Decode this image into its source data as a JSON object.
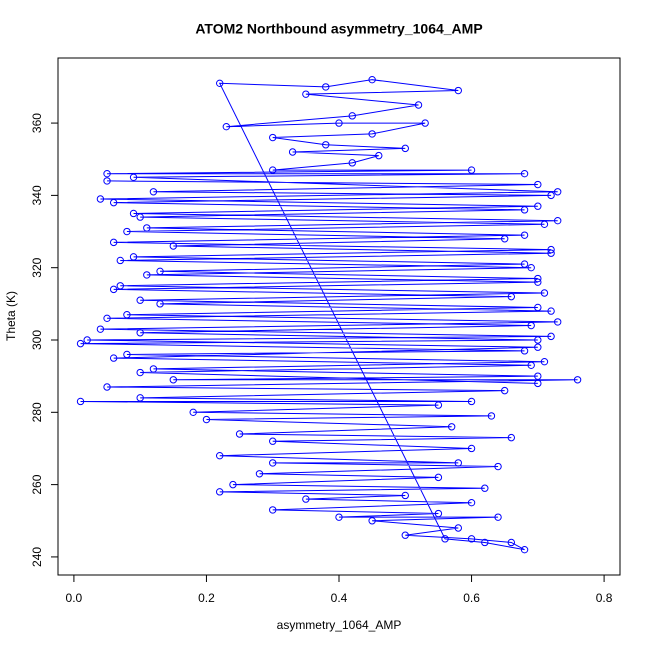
{
  "chart_data": {
    "type": "line",
    "marker": "circle",
    "title": "ATOM2 Northbound asymmetry_1064_AMP",
    "x_label": "asymmetry_1064_AMP",
    "y_label": "Theta (K)",
    "color": "#0000ff",
    "x": [
      0.05,
      0.7,
      0.12,
      0.72,
      0.06,
      0.68,
      0.1,
      0.71,
      0.08,
      0.65,
      0.15,
      0.72,
      0.07,
      0.69,
      0.11,
      0.7,
      0.06,
      0.66,
      0.13,
      0.72,
      0.05,
      0.69,
      0.1,
      0.7,
      0.01,
      0.68,
      0.08,
      0.71,
      0.12,
      0.7,
      0.15,
      0.76,
      0.05,
      0.65,
      0.1,
      0.6,
      0.01,
      0.55,
      0.18,
      0.63,
      0.2,
      0.57,
      0.25,
      0.66,
      0.3,
      0.6,
      0.22,
      0.58,
      0.3,
      0.64,
      0.28,
      0.55,
      0.24,
      0.62,
      0.22,
      0.5,
      0.35,
      0.6,
      0.3,
      0.55,
      0.4,
      0.64,
      0.45,
      0.58,
      0.5,
      0.6,
      0.66,
      0.68,
      0.62,
      0.56,
      0.22,
      0.38,
      0.45,
      0.58,
      0.35,
      0.52,
      0.42,
      0.23,
      0.4,
      0.53,
      0.45,
      0.3,
      0.38,
      0.5,
      0.33,
      0.46,
      0.42,
      0.3,
      0.6,
      0.05,
      0.68,
      0.09,
      0.73,
      0.04,
      0.7,
      0.09,
      0.73,
      0.11,
      0.68,
      0.06,
      0.72,
      0.09,
      0.68,
      0.13,
      0.7,
      0.07,
      0.71,
      0.1,
      0.7,
      0.08,
      0.73,
      0.04,
      0.72,
      0.02,
      0.7,
      0.06,
      0.69,
      0.1,
      0.7
    ],
    "y": [
      344,
      343,
      341,
      340,
      338,
      336,
      334,
      332,
      330,
      328,
      326,
      324,
      322,
      320,
      318,
      316,
      314,
      312,
      310,
      308,
      306,
      304,
      302,
      300,
      299,
      297,
      296,
      294,
      292,
      290,
      289,
      289,
      287,
      286,
      284,
      283,
      283,
      282,
      280,
      279,
      278,
      276,
      274,
      273,
      272,
      270,
      268,
      266,
      266,
      265,
      263,
      262,
      260,
      259,
      258,
      257,
      256,
      255,
      253,
      252,
      251,
      251,
      250,
      248,
      246,
      245,
      244,
      242,
      244,
      245,
      371,
      370,
      372,
      369,
      368,
      365,
      362,
      359,
      360,
      360,
      357,
      356,
      354,
      353,
      352,
      351,
      349,
      347,
      347,
      346,
      346,
      345,
      341,
      339,
      337,
      335,
      333,
      331,
      329,
      327,
      325,
      323,
      321,
      319,
      317,
      315,
      313,
      311,
      309,
      307,
      305,
      303,
      301,
      300,
      298,
      295,
      293,
      291,
      288
    ],
    "xlim": [
      -0.024,
      0.824
    ],
    "ylim": [
      235,
      378
    ],
    "xticks": [
      {
        "value": 0,
        "label": "0.0"
      },
      0.2,
      0.4,
      0.6,
      0.8
    ],
    "yticks": [
      240,
      260,
      280,
      300,
      320,
      340,
      360
    ]
  }
}
